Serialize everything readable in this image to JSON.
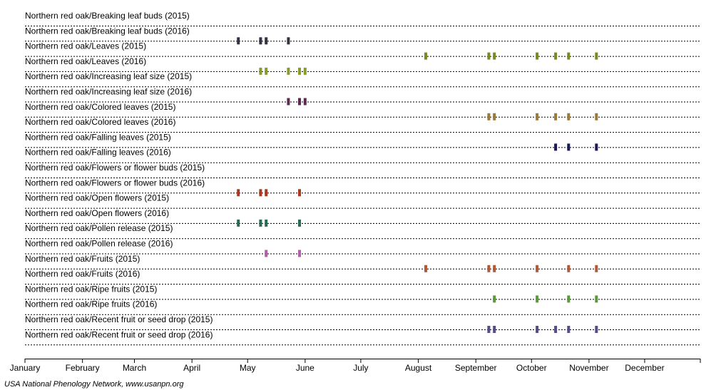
{
  "chart_data": {
    "type": "scatter",
    "subtype": "phenology-timeline",
    "title": "",
    "xlabel": "",
    "ylabel": "",
    "x_axis": {
      "range": [
        "2015-01-01",
        "2015-12-31"
      ],
      "tick_labels": [
        "January",
        "February",
        "March",
        "April",
        "May",
        "June",
        "July",
        "August",
        "September",
        "October",
        "November",
        "December"
      ]
    },
    "grid": "row dotted lines",
    "legend": "none",
    "rows": [
      {
        "label": "Northern red oak/Breaking leaf buds (2015)",
        "color": "#000000",
        "dates": []
      },
      {
        "label": "Northern red oak/Breaking leaf buds (2016)",
        "color": "#333344",
        "dates": [
          "2015-04-26",
          "2015-05-08",
          "2015-05-11",
          "2015-05-23"
        ]
      },
      {
        "label": "Northern red oak/Leaves (2015)",
        "color": "#7a8a22",
        "dates": [
          "2015-08-05",
          "2015-09-08",
          "2015-09-11",
          "2015-10-04",
          "2015-10-14",
          "2015-10-21",
          "2015-11-05"
        ]
      },
      {
        "label": "Northern red oak/Leaves (2016)",
        "color": "#8a9a2e",
        "dates": [
          "2015-05-08",
          "2015-05-11",
          "2015-05-23",
          "2015-05-29",
          "2015-06-01"
        ]
      },
      {
        "label": "Northern red oak/Increasing leaf size (2015)",
        "color": "#000000",
        "dates": []
      },
      {
        "label": "Northern red oak/Increasing leaf size (2016)",
        "color": "#5a2a55",
        "dates": [
          "2015-05-23",
          "2015-05-29",
          "2015-06-01"
        ]
      },
      {
        "label": "Northern red oak/Colored leaves (2015)",
        "color": "#9a7a3a",
        "dates": [
          "2015-09-08",
          "2015-09-11",
          "2015-10-04",
          "2015-10-14",
          "2015-10-21",
          "2015-11-05"
        ]
      },
      {
        "label": "Northern red oak/Colored leaves (2016)",
        "color": "#000000",
        "dates": []
      },
      {
        "label": "Northern red oak/Falling leaves (2015)",
        "color": "#1a1a55",
        "dates": [
          "2015-10-14",
          "2015-10-21",
          "2015-11-05"
        ]
      },
      {
        "label": "Northern red oak/Falling leaves (2016)",
        "color": "#000000",
        "dates": []
      },
      {
        "label": "Northern red oak/Flowers or flower buds (2015)",
        "color": "#000000",
        "dates": []
      },
      {
        "label": "Northern red oak/Flowers or flower buds (2016)",
        "color": "#a83a22",
        "dates": [
          "2015-04-26",
          "2015-05-08",
          "2015-05-11",
          "2015-05-29"
        ]
      },
      {
        "label": "Northern red oak/Open flowers (2015)",
        "color": "#000000",
        "dates": []
      },
      {
        "label": "Northern red oak/Open flowers (2016)",
        "color": "#2a6a55",
        "dates": [
          "2015-04-26",
          "2015-05-08",
          "2015-05-11",
          "2015-05-29"
        ]
      },
      {
        "label": "Northern red oak/Pollen release (2015)",
        "color": "#000000",
        "dates": []
      },
      {
        "label": "Northern red oak/Pollen release (2016)",
        "color": "#b060a8",
        "dates": [
          "2015-05-11",
          "2015-05-29"
        ]
      },
      {
        "label": "Northern red oak/Fruits (2015)",
        "color": "#b05a3a",
        "dates": [
          "2015-08-05",
          "2015-09-08",
          "2015-09-11",
          "2015-10-04",
          "2015-10-21",
          "2015-11-05"
        ]
      },
      {
        "label": "Northern red oak/Fruits (2016)",
        "color": "#000000",
        "dates": []
      },
      {
        "label": "Northern red oak/Ripe fruits (2015)",
        "color": "#5a9a3a",
        "dates": [
          "2015-09-11",
          "2015-10-04",
          "2015-10-21",
          "2015-11-05"
        ]
      },
      {
        "label": "Northern red oak/Ripe fruits (2016)",
        "color": "#000000",
        "dates": []
      },
      {
        "label": "Northern red oak/Recent fruit or seed drop (2015)",
        "color": "#5a4a8a",
        "dates": [
          "2015-09-08",
          "2015-09-11",
          "2015-10-04",
          "2015-10-14",
          "2015-10-21",
          "2015-11-05"
        ]
      },
      {
        "label": "Northern red oak/Recent fruit or seed drop (2016)",
        "color": "#000000",
        "dates": []
      }
    ]
  },
  "footer": {
    "credit": "USA National Phenology Network, www.usanpn.org"
  }
}
